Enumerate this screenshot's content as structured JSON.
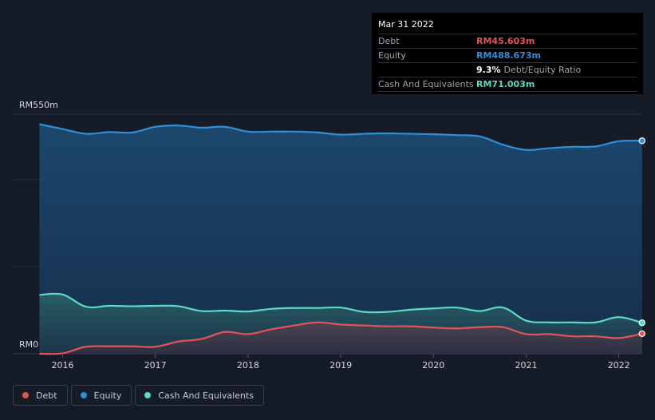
{
  "chart_data": {
    "type": "area",
    "title": "",
    "xlabel": "",
    "ylabel": "",
    "y_axis_labels": {
      "top": "RM550m",
      "bottom": "RM0"
    },
    "ylim": [
      0,
      550
    ],
    "xlim": [
      2015.7,
      2022.25
    ],
    "x_ticks": [
      2016,
      2017,
      2018,
      2019,
      2020,
      2021,
      2022
    ],
    "x_tick_labels": [
      "2016",
      "2017",
      "2018",
      "2019",
      "2020",
      "2021",
      "2022"
    ],
    "grid": true,
    "legend_placement": "bottom-left",
    "series": [
      {
        "name": "Equity",
        "key": "equity",
        "color": "#2f8fd8",
        "x": [
          2015.75,
          2016.0,
          2016.25,
          2016.5,
          2016.75,
          2017.0,
          2017.25,
          2017.5,
          2017.75,
          2018.0,
          2018.25,
          2018.5,
          2018.75,
          2019.0,
          2019.25,
          2019.5,
          2019.75,
          2020.0,
          2020.25,
          2020.5,
          2020.75,
          2021.0,
          2021.25,
          2021.5,
          2021.75,
          2022.0,
          2022.25
        ],
        "values": [
          527,
          516,
          505,
          509,
          508,
          521,
          524,
          519,
          521,
          510,
          510,
          510,
          508,
          503,
          505,
          506,
          505,
          504,
          502,
          499,
          480,
          468,
          472,
          475,
          476,
          488,
          489
        ]
      },
      {
        "name": "Cash And Equivalents",
        "key": "cash",
        "color": "#5dd9c8",
        "x": [
          2015.75,
          2016.0,
          2016.25,
          2016.5,
          2016.75,
          2017.0,
          2017.25,
          2017.5,
          2017.75,
          2018.0,
          2018.25,
          2018.5,
          2018.75,
          2019.0,
          2019.25,
          2019.5,
          2019.75,
          2020.0,
          2020.25,
          2020.5,
          2020.75,
          2021.0,
          2021.25,
          2021.5,
          2021.75,
          2022.0,
          2022.25
        ],
        "values": [
          135,
          136,
          108,
          110,
          109,
          110,
          109,
          98,
          99,
          97,
          103,
          105,
          105,
          106,
          96,
          96,
          101,
          104,
          106,
          98,
          106,
          76,
          72,
          72,
          72,
          84,
          71
        ]
      },
      {
        "name": "Debt",
        "key": "debt",
        "color": "#e0555a",
        "x": [
          2015.75,
          2016.0,
          2016.25,
          2016.5,
          2016.75,
          2017.0,
          2017.25,
          2017.5,
          2017.75,
          2018.0,
          2018.25,
          2018.5,
          2018.75,
          2019.0,
          2019.25,
          2019.5,
          2019.75,
          2020.0,
          2020.25,
          2020.5,
          2020.75,
          2021.0,
          2021.25,
          2021.5,
          2021.75,
          2022.0,
          2022.25
        ],
        "values": [
          0,
          1,
          16,
          17,
          17,
          16,
          28,
          34,
          50,
          45,
          56,
          65,
          72,
          67,
          65,
          63,
          63,
          60,
          58,
          61,
          61,
          45,
          45,
          40,
          40,
          36,
          46
        ]
      }
    ]
  },
  "tooltip": {
    "date": "Mar 31 2022",
    "rows": [
      {
        "label": "Debt",
        "value": "RM45.603m",
        "color": "#e0555a"
      },
      {
        "label": "Equity",
        "value": "RM488.673m",
        "color": "#2f8fd8"
      }
    ],
    "ratio": {
      "value": "9.3%",
      "label": "Debt/Equity Ratio"
    },
    "cash": {
      "label": "Cash And Equivalents",
      "value": "RM71.003m",
      "color": "#5dd9c8"
    }
  },
  "legend": [
    {
      "label": "Debt",
      "color": "#e0555a"
    },
    {
      "label": "Equity",
      "color": "#2f8fd8"
    },
    {
      "label": "Cash And Equivalents",
      "color": "#5dd9c8"
    }
  ]
}
